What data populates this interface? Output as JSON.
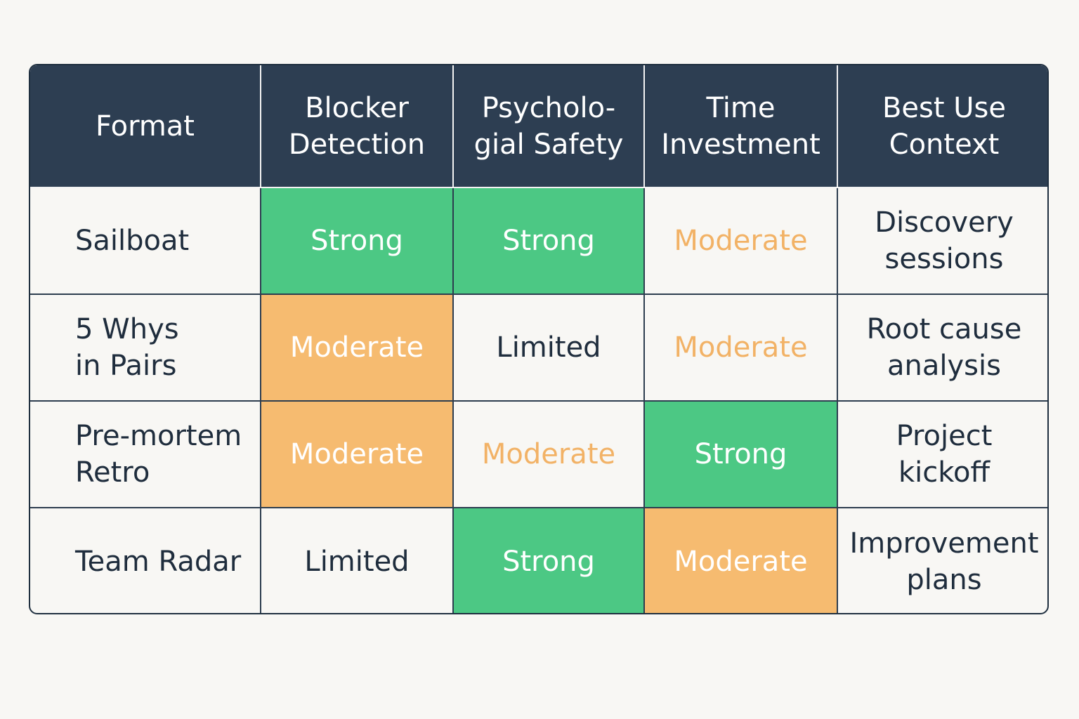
{
  "table": {
    "headers": [
      "Format",
      "Blocker\nDetection",
      "Psycholo-\ngial Safety",
      "Time\nInvestment",
      "Best Use\nContext"
    ],
    "rows": [
      {
        "format": "Sailboat",
        "blocker_detection": "Strong",
        "psychological_safety": "Strong",
        "time_investment": "Moderate",
        "best_use_context": "Discovery\nsessions"
      },
      {
        "format": "5 Whys\nin Pairs",
        "blocker_detection": "Moderate",
        "psychological_safety": "Limited",
        "time_investment": "Moderate",
        "best_use_context": "Root cause\nanalysis"
      },
      {
        "format": "Pre-mortem\nRetro",
        "blocker_detection": "Moderate",
        "psychological_safety": "Moderate",
        "time_investment": "Strong",
        "best_use_context": "Project\nkickoff"
      },
      {
        "format": "Team Radar",
        "blocker_detection": "Limited",
        "psychological_safety": "Strong",
        "time_investment": "Moderate",
        "best_use_context": "Improvement\nplans"
      }
    ]
  },
  "colors": {
    "header_bg": "#2d3e52",
    "strong_fill": "#4cc884",
    "moderate_fill": "#f6bb70",
    "moderate_text": "#f2b266",
    "text_dark": "#1f2d3d",
    "page_bg": "#f8f7f4"
  }
}
